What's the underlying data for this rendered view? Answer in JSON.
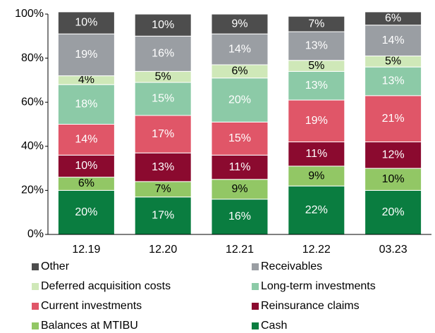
{
  "chart_data": {
    "type": "stacked_bar",
    "categories": [
      "12.19",
      "12.20",
      "12.21",
      "12.22",
      "03.23"
    ],
    "series": [
      {
        "name": "Other",
        "color": "#4d4d4d",
        "label_color": "#ffffff",
        "values": [
          10,
          10,
          9,
          7,
          6
        ],
        "value_labels": [
          "10%",
          "10%",
          "9%",
          "7%",
          "6%"
        ]
      },
      {
        "name": "Receivables",
        "color": "#9a9ea3",
        "label_color": "#ffffff",
        "values": [
          19,
          16,
          14,
          13,
          14
        ],
        "value_labels": [
          "19%",
          "16%",
          "14%",
          "13%",
          "14%"
        ]
      },
      {
        "name": "Deferred acquisition costs",
        "color": "#cfe8b8",
        "label_color": "#000000",
        "values": [
          4,
          5,
          6,
          5,
          5
        ],
        "value_labels": [
          "4%",
          "5%",
          "6%",
          "5%",
          "5%"
        ]
      },
      {
        "name": "Long-term investments",
        "color": "#8ccaa7",
        "label_color": "#ffffff",
        "values": [
          18,
          15,
          20,
          13,
          13
        ],
        "value_labels": [
          "18%",
          "15%",
          "20%",
          "13%",
          "13%"
        ]
      },
      {
        "name": "Current investments",
        "color": "#e05668",
        "label_color": "#ffffff",
        "values": [
          14,
          17,
          15,
          19,
          21
        ],
        "value_labels": [
          "14%",
          "17%",
          "15%",
          "19%",
          "21%"
        ]
      },
      {
        "name": "Reinsurance claims",
        "color": "#8b0a2f",
        "label_color": "#ffffff",
        "values": [
          10,
          13,
          11,
          11,
          12
        ],
        "value_labels": [
          "10%",
          "13%",
          "11%",
          "11%",
          "12%"
        ]
      },
      {
        "name": "Balances at MTIBU",
        "color": "#92c765",
        "label_color": "#000000",
        "values": [
          6,
          7,
          9,
          9,
          10
        ],
        "value_labels": [
          "6%",
          "7%",
          "9%",
          "9%",
          "10%"
        ]
      },
      {
        "name": "Cash",
        "color": "#0a7d40",
        "label_color": "#ffffff",
        "values": [
          20,
          17,
          16,
          22,
          20
        ],
        "value_labels": [
          "20%",
          "17%",
          "16%",
          "22%",
          "20%"
        ]
      }
    ],
    "ylim": [
      0,
      100
    ],
    "yticks": [
      {
        "value": 0,
        "label": "0%"
      },
      {
        "value": 20,
        "label": "20%"
      },
      {
        "value": 40,
        "label": "40%"
      },
      {
        "value": 60,
        "label": "60%"
      },
      {
        "value": 80,
        "label": "80%"
      },
      {
        "value": 100,
        "label": "100%"
      }
    ],
    "grid": false
  }
}
